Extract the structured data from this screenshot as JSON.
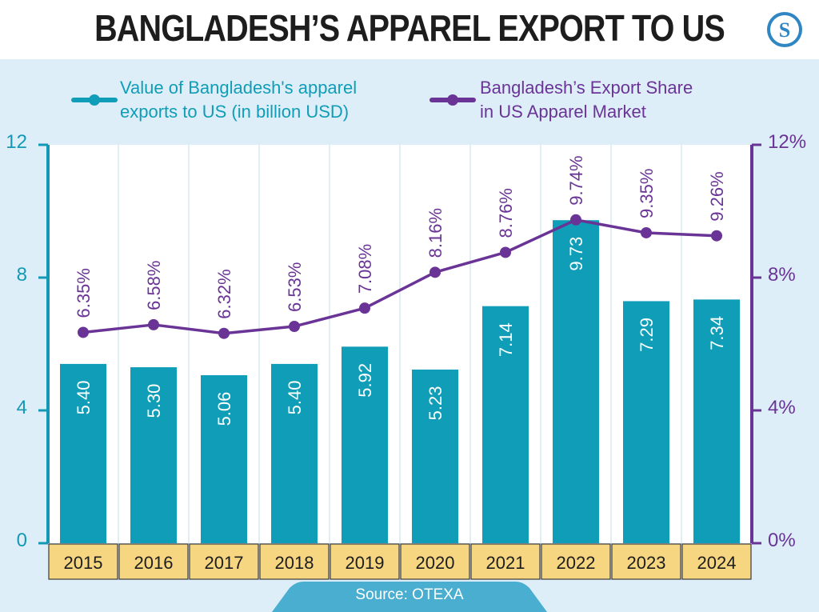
{
  "title": "BANGLADESH’S APPAREL EXPORT TO US",
  "logo_letter": "S",
  "source": "Source: OTEXA",
  "colors": {
    "bar": "#0f9db7",
    "line": "#6a3497",
    "left_axis": "#1399b5",
    "right_axis": "#6a3497",
    "year_box": "#f6d680",
    "plot_bg": "#ffffff",
    "page_bg": "#ddeef8"
  },
  "chart_data": {
    "type": "bar",
    "title": "BANGLADESH’S APPAREL EXPORT TO US",
    "categories": [
      "2015",
      "2016",
      "2017",
      "2018",
      "2019",
      "2020",
      "2021",
      "2022",
      "2023",
      "2024"
    ],
    "series": [
      {
        "name": "Value of Bangladesh's apparel exports to US (in billion USD)",
        "legend_lines": [
          "Value of Bangladesh's apparel",
          "exports to US (in billion USD)"
        ],
        "type": "bar",
        "axis": "left",
        "values": [
          5.4,
          5.3,
          5.06,
          5.4,
          5.92,
          5.23,
          7.14,
          9.73,
          7.29,
          7.34
        ],
        "labels": [
          "5.40",
          "5.30",
          "5.06",
          "5.40",
          "5.92",
          "5.23",
          "7.14",
          "9.73",
          "7.29",
          "7.34"
        ]
      },
      {
        "name": "Bangladesh’s Export Share in US Apparel Market",
        "legend_lines": [
          "Bangladesh’s Export Share",
          "in US Apparel Market"
        ],
        "type": "line",
        "axis": "right",
        "values": [
          6.35,
          6.58,
          6.32,
          6.53,
          7.08,
          8.16,
          8.76,
          9.74,
          9.35,
          9.26
        ],
        "labels": [
          "6.35%",
          "6.58%",
          "6.32%",
          "6.53%",
          "7.08%",
          "8.16%",
          "8.76%",
          "9.74%",
          "9.35%",
          "9.26%"
        ]
      }
    ],
    "y_left": {
      "ylim": [
        0,
        12
      ],
      "ticks": [
        "0",
        "4",
        "8",
        "12"
      ]
    },
    "y_right": {
      "ylim": [
        0,
        12
      ],
      "ticks": [
        "0%",
        "4%",
        "8%",
        "12%"
      ]
    },
    "legend_position": "top",
    "grid": "vertical"
  }
}
